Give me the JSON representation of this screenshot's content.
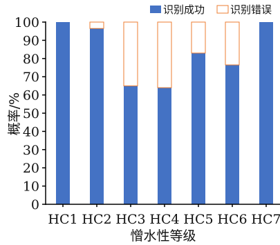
{
  "chart_data": {
    "type": "bar",
    "stacked": true,
    "categories": [
      "HC1",
      "HC2",
      "HC3",
      "HC4",
      "HC5",
      "HC6",
      "HC7"
    ],
    "series": [
      {
        "name": "识别成功",
        "values": [
          100,
          96.5,
          65,
          64,
          83,
          76.5,
          100
        ],
        "color": "#4472C4"
      },
      {
        "name": "识别错误",
        "values": [
          0,
          3.5,
          35,
          36,
          17,
          23.5,
          0
        ],
        "color": "#ED7D31"
      }
    ],
    "xlabel": "憎水性等级",
    "ylabel": "概率/%",
    "ylim": [
      0,
      100
    ],
    "yticks": [
      0,
      10,
      20,
      30,
      40,
      50,
      60,
      70,
      80,
      90,
      100
    ],
    "legend": "top-right",
    "grid": false
  }
}
